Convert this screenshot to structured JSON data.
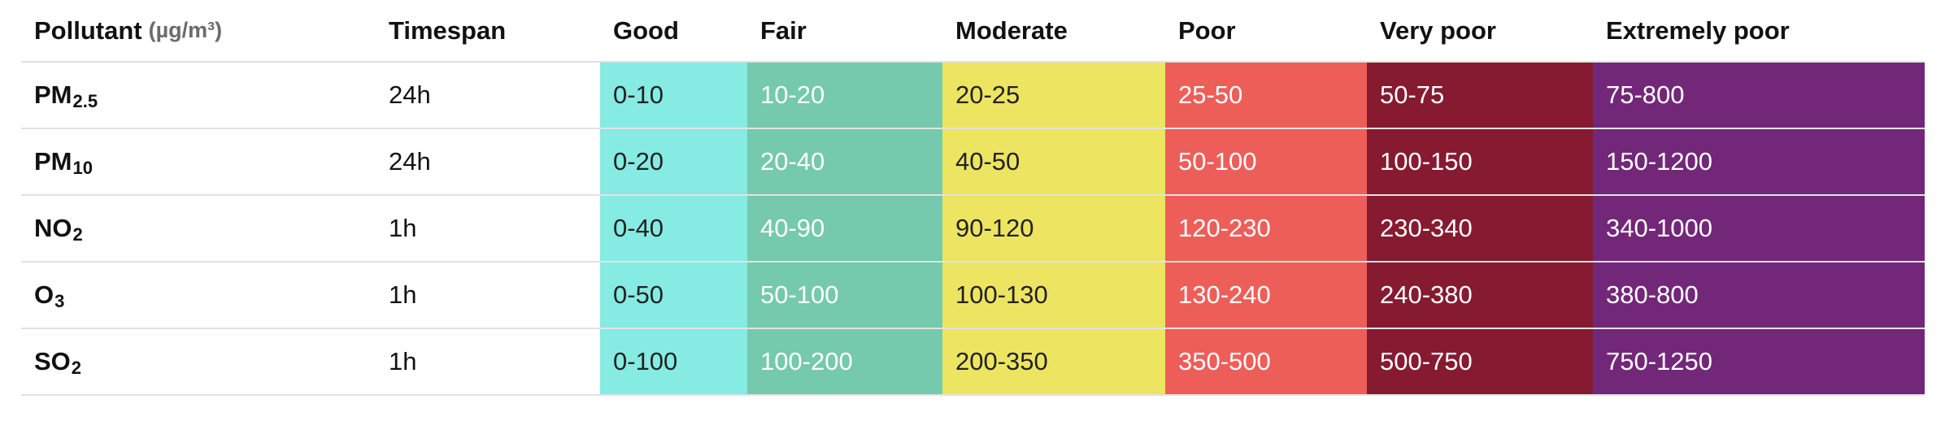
{
  "header": {
    "pollutant_label": "Pollutant",
    "pollutant_unit": "(µg/m³)",
    "timespan_label": "Timespan",
    "levels": [
      "Good",
      "Fair",
      "Moderate",
      "Poor",
      "Very poor",
      "Extremely poor"
    ]
  },
  "level_colors": [
    "#85EBE3",
    "#75C9AD",
    "#EDE562",
    "#EE5E58",
    "#861A30",
    "#732779"
  ],
  "level_text_colors": [
    "#222222",
    "#ffffff",
    "#222222",
    "#ffffff",
    "#ffffff",
    "#ffffff"
  ],
  "rows": [
    {
      "base": "PM",
      "sub": "2.5",
      "timespan": "24h",
      "ranges": [
        "0-10",
        "10-20",
        "20-25",
        "25-50",
        "50-75",
        "75-800"
      ]
    },
    {
      "base": "PM",
      "sub": "10",
      "timespan": "24h",
      "ranges": [
        "0-20",
        "20-40",
        "40-50",
        "50-100",
        "100-150",
        "150-1200"
      ]
    },
    {
      "base": "NO",
      "sub": "2",
      "timespan": "1h",
      "ranges": [
        "0-40",
        "40-90",
        "90-120",
        "120-230",
        "230-340",
        "340-1000"
      ]
    },
    {
      "base": "O",
      "sub": "3",
      "timespan": "1h",
      "ranges": [
        "0-50",
        "50-100",
        "100-130",
        "130-240",
        "240-380",
        "380-800"
      ]
    },
    {
      "base": "SO",
      "sub": "2",
      "timespan": "1h",
      "ranges": [
        "0-100",
        "100-200",
        "200-350",
        "350-500",
        "500-750",
        "750-1250"
      ]
    }
  ]
}
